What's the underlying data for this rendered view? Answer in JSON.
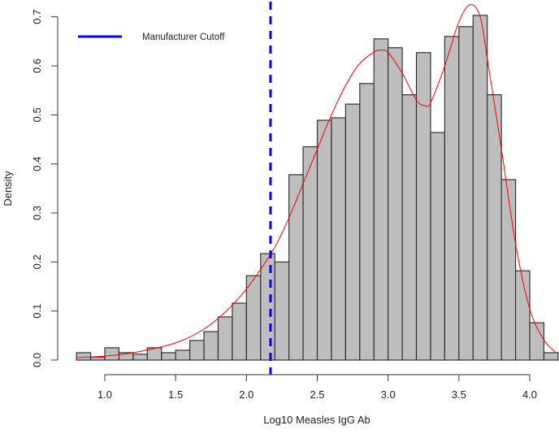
{
  "chart_data": {
    "type": "bar",
    "subtype": "histogram_with_density",
    "title": "",
    "xlabel": "Log10 Measles IgG Ab",
    "ylabel": "Density",
    "xlim": [
      0.8,
      4.2
    ],
    "ylim": [
      0.0,
      0.7
    ],
    "x_ticks": [
      "1.0",
      "1.5",
      "2.0",
      "2.5",
      "3.0",
      "3.5",
      "4.0"
    ],
    "y_ticks": [
      "0.0",
      "0.1",
      "0.2",
      "0.3",
      "0.4",
      "0.5",
      "0.6",
      "0.7"
    ],
    "grid": false,
    "bin_width": 0.1,
    "bin_edges": [
      0.8,
      0.9,
      1.0,
      1.1,
      1.2,
      1.3,
      1.4,
      1.5,
      1.6,
      1.7,
      1.8,
      1.9,
      2.0,
      2.1,
      2.2,
      2.3,
      2.4,
      2.5,
      2.6,
      2.7,
      2.8,
      2.9,
      3.0,
      3.1,
      3.2,
      3.3,
      3.4,
      3.5,
      3.6,
      3.7,
      3.8,
      3.9,
      4.0,
      4.1,
      4.2
    ],
    "values": [
      0.015,
      0.006,
      0.025,
      0.015,
      0.012,
      0.025,
      0.015,
      0.02,
      0.04,
      0.058,
      0.088,
      0.116,
      0.172,
      0.217,
      0.2,
      0.378,
      0.435,
      0.489,
      0.494,
      0.522,
      0.564,
      0.655,
      0.637,
      0.541,
      0.627,
      0.464,
      0.66,
      0.68,
      0.703,
      0.541,
      0.368,
      0.182,
      0.076,
      0.015
    ],
    "bar_color": "#bebebe",
    "bar_edge_color": "#333333",
    "density_curve": {
      "color": "#ff0000",
      "x": [
        0.8,
        1.0,
        1.2,
        1.4,
        1.5,
        1.6,
        1.7,
        1.8,
        1.9,
        2.0,
        2.1,
        2.2,
        2.3,
        2.4,
        2.5,
        2.6,
        2.7,
        2.8,
        2.9,
        2.95,
        3.0,
        3.1,
        3.2,
        3.26,
        3.3,
        3.4,
        3.5,
        3.58,
        3.65,
        3.7,
        3.8,
        3.9,
        4.0,
        4.1,
        4.18
      ],
      "y": [
        0.005,
        0.008,
        0.015,
        0.027,
        0.035,
        0.047,
        0.063,
        0.085,
        0.112,
        0.145,
        0.185,
        0.23,
        0.29,
        0.36,
        0.43,
        0.5,
        0.56,
        0.605,
        0.628,
        0.632,
        0.627,
        0.585,
        0.53,
        0.519,
        0.525,
        0.6,
        0.69,
        0.725,
        0.7,
        0.615,
        0.43,
        0.237,
        0.104,
        0.041,
        0.016
      ]
    },
    "vline": {
      "x": 2.17,
      "color": "#0000ff",
      "style": "dashed",
      "label": "Manufacturer Cutoff"
    },
    "legend": {
      "position": "top-left",
      "entries": [
        {
          "label": "Manufacturer Cutoff",
          "color": "#0000ff",
          "style": "solid-line"
        }
      ]
    }
  }
}
